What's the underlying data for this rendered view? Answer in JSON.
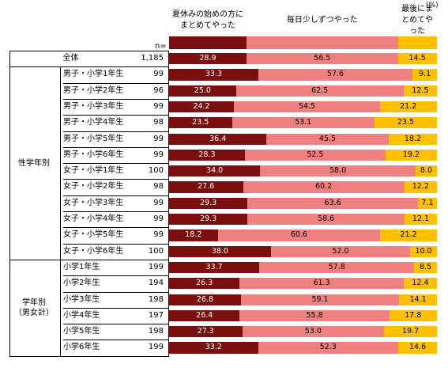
{
  "unit_label": "(%)",
  "n_header": "n=",
  "chart_data": {
    "type": "bar",
    "orientation": "horizontal",
    "stacked": true,
    "xlim": [
      0,
      100
    ],
    "series": [
      {
        "name": "夏休みの始めの方に\nまとめてやった",
        "color": "#7b0f0f",
        "label_color": "#ffffff"
      },
      {
        "name": "毎日少しずつやった",
        "color": "#f08080",
        "label_color": "#000000"
      },
      {
        "name": "最後にまとめてやった",
        "color": "#ffc000",
        "label_color": "#000000"
      }
    ],
    "groups": [
      {
        "label": "",
        "rows": [
          {
            "label": "全体",
            "n": "1,185",
            "values": [
              28.9,
              56.5,
              14.5
            ]
          }
        ]
      },
      {
        "label": "性学年別",
        "rows": [
          {
            "label": "男子・小学1年生",
            "n": "99",
            "values": [
              33.3,
              57.6,
              9.1
            ]
          },
          {
            "label": "男子・小学2年生",
            "n": "96",
            "values": [
              25.0,
              62.5,
              12.5
            ]
          },
          {
            "label": "男子・小学3年生",
            "n": "99",
            "values": [
              24.2,
              54.5,
              21.2
            ]
          },
          {
            "label": "男子・小学4年生",
            "n": "98",
            "values": [
              23.5,
              53.1,
              23.5
            ]
          },
          {
            "label": "男子・小学5年生",
            "n": "99",
            "values": [
              36.4,
              45.5,
              18.2
            ]
          },
          {
            "label": "男子・小学6年生",
            "n": "99",
            "values": [
              28.3,
              52.5,
              19.2
            ]
          },
          {
            "label": "女子・小学1年生",
            "n": "100",
            "values": [
              34.0,
              58.0,
              8.0
            ]
          },
          {
            "label": "女子・小学2年生",
            "n": "98",
            "values": [
              27.6,
              60.2,
              12.2
            ]
          },
          {
            "label": "女子・小学3年生",
            "n": "99",
            "values": [
              29.3,
              63.6,
              7.1
            ]
          },
          {
            "label": "女子・小学4年生",
            "n": "99",
            "values": [
              29.3,
              58.6,
              12.1
            ]
          },
          {
            "label": "女子・小学5年生",
            "n": "99",
            "values": [
              18.2,
              60.6,
              21.2
            ]
          },
          {
            "label": "女子・小学6年生",
            "n": "100",
            "values": [
              38.0,
              52.0,
              10.0
            ]
          }
        ]
      },
      {
        "label": "学年別\n（男女計）",
        "rows": [
          {
            "label": "小学1年生",
            "n": "199",
            "values": [
              33.7,
              57.8,
              8.5
            ]
          },
          {
            "label": "小学2年生",
            "n": "194",
            "values": [
              26.3,
              61.3,
              12.4
            ]
          },
          {
            "label": "小学3年生",
            "n": "198",
            "values": [
              26.8,
              59.1,
              14.1
            ]
          },
          {
            "label": "小学4年生",
            "n": "197",
            "values": [
              26.4,
              55.8,
              17.8
            ]
          },
          {
            "label": "小学5年生",
            "n": "198",
            "values": [
              27.3,
              53.0,
              19.7
            ]
          },
          {
            "label": "小学6年生",
            "n": "199",
            "values": [
              33.2,
              52.3,
              14.6
            ]
          }
        ]
      }
    ]
  }
}
